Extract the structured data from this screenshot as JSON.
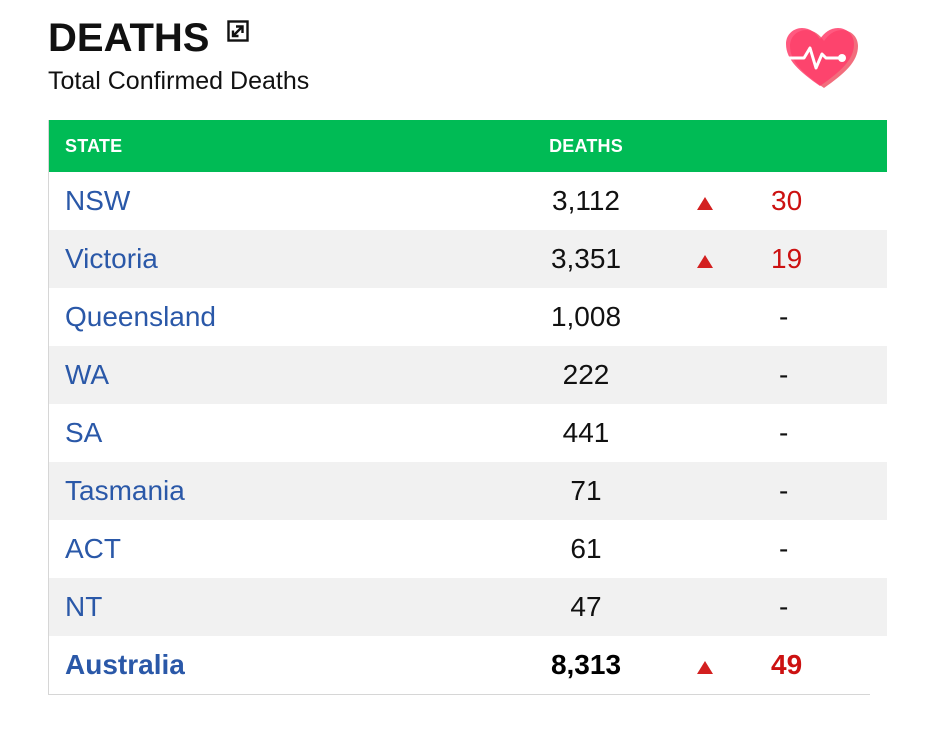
{
  "header": {
    "title": "DEATHS",
    "subtitle": "Total Confirmed Deaths",
    "expand_icon": "expand-icon",
    "brand_icon": "heart-pulse-icon"
  },
  "colors": {
    "header_bg": "#00bb55",
    "state_link": "#2a58a8",
    "increase": "#cc1111"
  },
  "table": {
    "columns": [
      "STATE",
      "DEATHS",
      "",
      ""
    ],
    "rows": [
      {
        "state": "NSW",
        "deaths": "3,112",
        "up": true,
        "change": "30"
      },
      {
        "state": "Victoria",
        "deaths": "3,351",
        "up": true,
        "change": "19"
      },
      {
        "state": "Queensland",
        "deaths": "1,008",
        "up": false,
        "change": "-"
      },
      {
        "state": "WA",
        "deaths": "222",
        "up": false,
        "change": "-"
      },
      {
        "state": "SA",
        "deaths": "441",
        "up": false,
        "change": "-"
      },
      {
        "state": "Tasmania",
        "deaths": "71",
        "up": false,
        "change": "-"
      },
      {
        "state": "ACT",
        "deaths": "61",
        "up": false,
        "change": "-"
      },
      {
        "state": "NT",
        "deaths": "47",
        "up": false,
        "change": "-"
      }
    ],
    "total": {
      "state": "Australia",
      "deaths": "8,313",
      "up": true,
      "change": "49"
    }
  }
}
